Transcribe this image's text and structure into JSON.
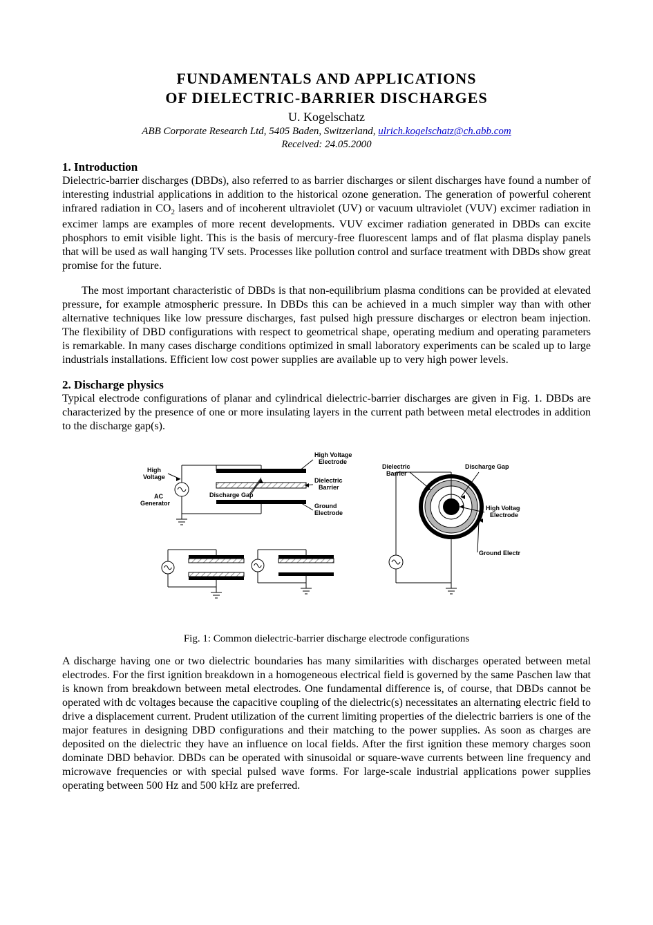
{
  "title_line1": "FUNDAMENTALS  AND  APPLICATIONS",
  "title_line2": "OF  DIELECTRIC-BARRIER  DISCHARGES",
  "author": "U. Kogelschatz",
  "affiliation_prefix": "ABB Corporate Research Ltd, 5405 Baden, Switzerland,  ",
  "email": "ulrich.kogelschatz@ch.abb.com",
  "received": "Received:  24.05.2000",
  "sec1_heading": "1. Introduction",
  "sec1_p1_a": "Dielectric-barrier discharges (DBDs), also referred to as barrier discharges or silent discharges have found a number of interesting industrial applications in addition to the historical ozone generation. The generation of powerful coherent infrared radiation in CO",
  "sec1_p1_sub": "2",
  "sec1_p1_b": " lasers and of incoherent ultraviolet (UV) or vacuum ultraviolet (VUV) excimer radiation in excimer lamps are examples of more recent developments. VUV excimer radiation generated in  DBDs can excite phosphors to emit visible light. This is the basis of mercury-free fluorescent lamps and of flat plasma display panels that will be used as wall hanging TV sets. Processes like pollution control and surface treatment with DBDs show great promise for the future.",
  "sec1_p2": "The most important characteristic of DBDs is that non-equilibrium plasma conditions can be provided at elevated pressure, for example atmospheric pressure. In  DBDs this can be achieved in a much simpler way than with other alternative techniques like low pressure discharges, fast pulsed high pressure discharges or electron beam injection. The flexibility of DBD configurations with respect to geometrical shape, operating medium and operating parameters is remarkable. In many cases discharge conditions optimized in small laboratory experiments can be scaled up to large industrials installations. Efficient low cost power supplies are available up to very high power levels.",
  "sec2_heading": "2. Discharge physics",
  "sec2_p1": "Typical electrode configurations of planar and cylindrical dielectric-barrier discharges are given in Fig. 1. DBDs are characterized by the presence of one or more insulating layers in the current path between metal electrodes in addition to the discharge gap(s).",
  "fig1_caption": "Fig. 1: Common dielectric-barrier discharge electrode configurations",
  "sec2_p2": "A discharge having one or two dielectric boundaries has many similarities with discharges operated between metal electrodes. For the first ignition breakdown in a homogeneous electrical field is governed by the same Paschen law that is known from breakdown between metal electrodes. One fundamental difference is, of course, that  DBDs cannot be operated with dc voltages because the capacitive coupling of the dielectric(s) necessitates an alternating electric field to drive a displacement current. Prudent utilization of the current limiting properties of the dielectric barriers is one of the major features in designing DBD configurations and their matching to the power supplies. As soon as charges are deposited on the dielectric they have an influence on local fields. After the first ignition these memory charges soon dominate DBD behavior. DBDs can be operated with sinusoidal or square-wave currents between line frequency and microwave frequencies or with special pulsed wave forms. For large-scale industrial applications power supplies operating between 500 Hz and 500 kHz are preferred.",
  "fig1": {
    "labels": {
      "hv_electrode": "High Voltage",
      "hv_electrode2": "Electrode",
      "hv": "High",
      "voltage": "Voltage",
      "ac": "AC",
      "generator": "Generator",
      "discharge_gap": "Discharge Gap",
      "dielectric": "Dielectric",
      "barrier": "Barrier",
      "ground": "Ground",
      "electrode": "Electrode",
      "ground_electrode": "Ground Electrode",
      "hv_electrode_single": "High Voltage",
      "hv_electrode_single2": "Electrode"
    },
    "colors": {
      "stroke": "#000000",
      "fill_black": "#000000",
      "hatch": "#999999",
      "bg": "#ffffff",
      "ring_grey": "#b5b5b5"
    },
    "font_small": 9,
    "font_label": 10,
    "line_width": 1
  }
}
